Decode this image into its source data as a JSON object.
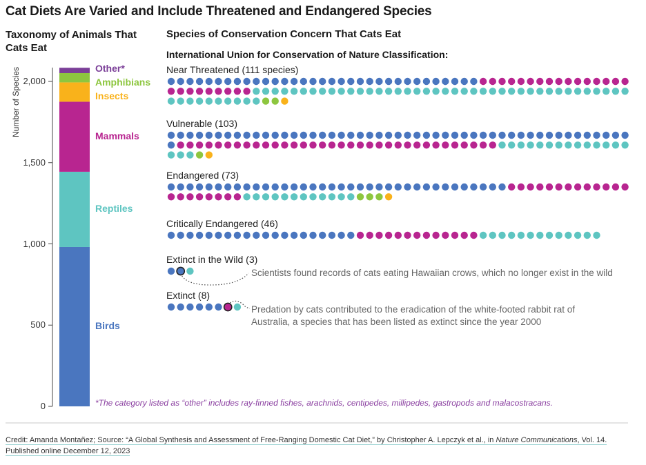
{
  "page": {
    "title": "Cat Diets Are Varied and Include Threatened and Endangered Species",
    "credit_prefix": "Credit: Amanda Montañez; Source: “A Global Synthesis and Assessment of Free-Ranging Domestic Cat Diet,” by Christopher A. Lepczyk et al., in ",
    "credit_journal": "Nature Communications",
    "credit_suffix": ", Vol. 14.",
    "credit_line2": "Published online December 12, 2023"
  },
  "colors": {
    "birds": "#4a76bf",
    "reptiles": "#5ec5c1",
    "mammals": "#b82590",
    "insects": "#f9b21b",
    "amphibians": "#8dc63f",
    "other": "#7b3f98"
  },
  "chart_data": [
    {
      "type": "bar",
      "subtype": "stacked",
      "title": "Taxonomy of Animals That Cats Eat",
      "ylabel": "Number of Species",
      "ylim": [
        0,
        2100
      ],
      "yticks": [
        0,
        500,
        1000,
        1500,
        2000
      ],
      "ytick_labels": [
        "0",
        "500",
        "1,000",
        "1,500",
        "2,000"
      ],
      "categories": [
        "Birds",
        "Reptiles",
        "Mammals",
        "Insects",
        "Amphibians",
        "Other*"
      ],
      "values": [
        981,
        463,
        431,
        119,
        57,
        33
      ],
      "footnote": "*The category listed as “other” includes ray-finned fishes, arachnids, centipedes, millipedes, gastropods and malacostracans."
    },
    {
      "type": "dot",
      "title": "Species of Conservation Concern That Cats Eat",
      "subtitle": "International Union for Conservation of Nature Classification:",
      "legend_order": [
        "Birds",
        "Mammals",
        "Reptiles",
        "Amphibians",
        "Insects"
      ],
      "series": [
        {
          "name": "Near Threatened (111 species)",
          "counts": {
            "Birds": 33,
            "Mammals": 25,
            "Reptiles": 50,
            "Amphibians": 2,
            "Insects": 1
          }
        },
        {
          "name": "Vulnerable (103)",
          "counts": {
            "Birds": 50,
            "Mammals": 34,
            "Reptiles": 17,
            "Amphibians": 1,
            "Insects": 1
          }
        },
        {
          "name": "Endangered (73)",
          "counts": {
            "Birds": 36,
            "Mammals": 21,
            "Reptiles": 12,
            "Amphibians": 3,
            "Insects": 1
          }
        },
        {
          "name": "Critically Endangered (46)",
          "counts": {
            "Birds": 20,
            "Mammals": 13,
            "Reptiles": 13,
            "Amphibians": 0,
            "Insects": 0
          }
        },
        {
          "name": "Extinct in the Wild (3)",
          "counts": {
            "Birds": 2,
            "Mammals": 0,
            "Reptiles": 1,
            "Amphibians": 0,
            "Insects": 0
          },
          "highlight_index": 1,
          "annotation": "Scientists found records of cats eating Hawaiian crows, which no longer exist in the wild"
        },
        {
          "name": "Extinct (8)",
          "counts": {
            "Birds": 6,
            "Mammals": 1,
            "Reptiles": 1,
            "Amphibians": 0,
            "Insects": 0
          },
          "highlight_index": 6,
          "annotation": "Predation by cats contributed to the eradication of the white-footed rabbit rat of",
          "annotation_line2": "Australia, a species that has been listed as extinct since the year 2000"
        }
      ]
    }
  ]
}
